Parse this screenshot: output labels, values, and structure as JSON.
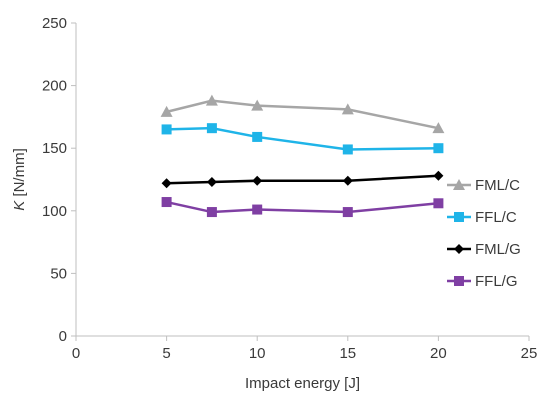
{
  "chart_data": {
    "type": "line",
    "title": "",
    "xlabel": "Impact energy [J]",
    "ylabel_italic": "K",
    "ylabel_unit": " [N/mm]",
    "xlim": [
      0,
      25
    ],
    "ylim": [
      0,
      250
    ],
    "x_ticks": [
      "0",
      "5",
      "10",
      "15",
      "20",
      "25"
    ],
    "y_ticks": [
      "0",
      "50",
      "100",
      "150",
      "200",
      "250"
    ],
    "grid": false,
    "legend_position": "right",
    "x": [
      5,
      7.5,
      10,
      15,
      20
    ],
    "series": [
      {
        "name": "FML/C",
        "marker": "triangle",
        "color": "#a6a6a6",
        "values": [
          179,
          188,
          184,
          181,
          166
        ]
      },
      {
        "name": "FFL/C",
        "marker": "square",
        "color": "#1fb4e8",
        "values": [
          165,
          166,
          159,
          149,
          150
        ]
      },
      {
        "name": "FML/G",
        "marker": "diamond",
        "color": "#000000",
        "values": [
          122,
          123,
          124,
          124,
          128
        ]
      },
      {
        "name": "FFL/G",
        "marker": "square",
        "color": "#7f3fa3",
        "values": [
          107,
          99,
          101,
          99,
          106
        ]
      }
    ]
  }
}
